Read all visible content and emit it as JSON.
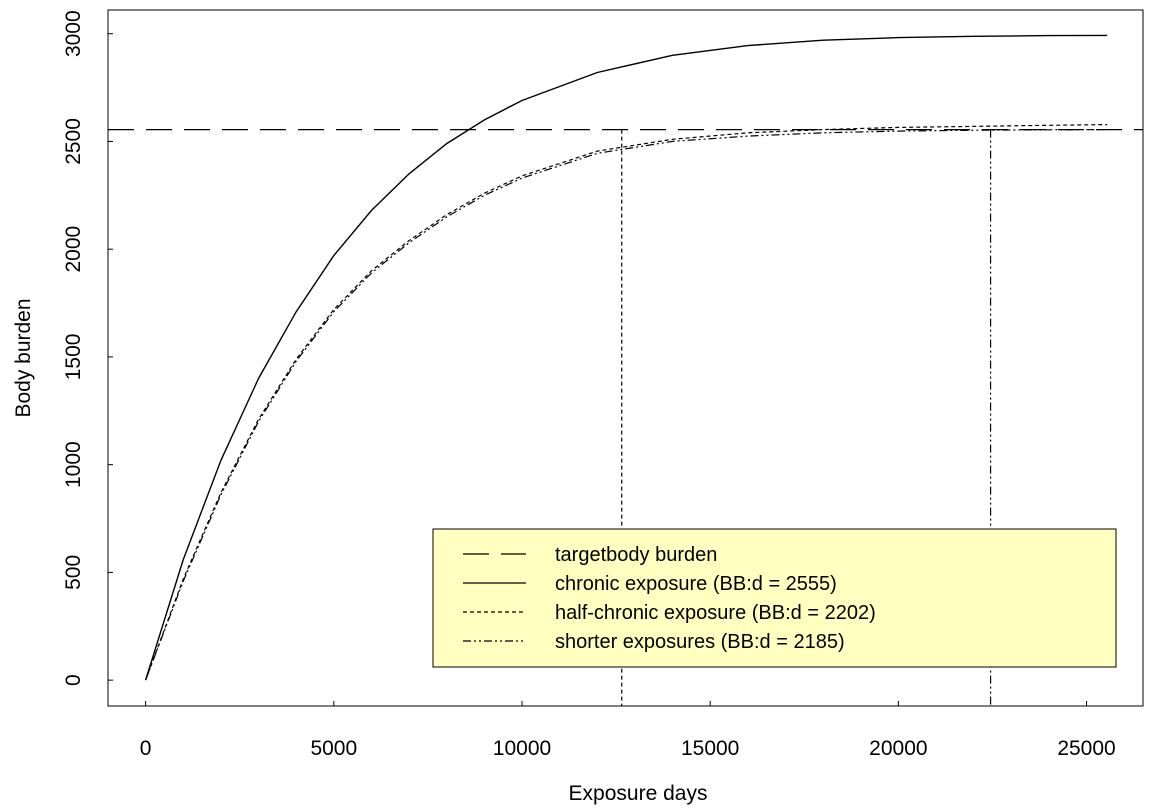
{
  "chart_data": {
    "type": "line",
    "xlabel": "Exposure days",
    "ylabel": "Body burden",
    "xlim": [
      -1000,
      26500
    ],
    "ylim": [
      -120,
      3110
    ],
    "x_ticks": [
      0,
      5000,
      10000,
      15000,
      20000,
      25000
    ],
    "y_ticks": [
      0,
      500,
      1000,
      1500,
      2000,
      2500,
      3000
    ],
    "x_tick_labels": [
      "0",
      "5000",
      "10000",
      "15000",
      "20000",
      "25000"
    ],
    "y_tick_labels": [
      "0",
      "500",
      "1000",
      "1500",
      "2000",
      "2500",
      "3000"
    ],
    "grid": false,
    "legend_position": "bottom-right",
    "legend_background": "#ffffc0",
    "target_body_burden": 2555,
    "vertical_markers": [
      {
        "x": 12650,
        "style": "dotted"
      },
      {
        "x": 22450,
        "style": "dash-dot"
      }
    ],
    "series": [
      {
        "name": "targetbody burden",
        "style": "long-dash",
        "x": [
          -1000,
          26500
        ],
        "y": [
          2555,
          2555
        ]
      },
      {
        "name": "chronic exposure (BB:d = 2555)",
        "style": "solid",
        "x": [
          0,
          1000,
          2000,
          3000,
          4000,
          5000,
          6000,
          7000,
          8000,
          9000,
          10000,
          12000,
          14000,
          16000,
          18000,
          20000,
          22000,
          24000,
          25550
        ],
        "y": [
          0,
          560,
          1020,
          1400,
          1710,
          1970,
          2180,
          2350,
          2490,
          2600,
          2690,
          2820,
          2900,
          2945,
          2970,
          2982,
          2988,
          2991,
          2992
        ]
      },
      {
        "name": "half-chronic exposure (BB:d = 2202)",
        "style": "dotted",
        "x": [
          0,
          1000,
          2000,
          3000,
          4000,
          5000,
          6000,
          7000,
          8000,
          9000,
          10000,
          12000,
          14000,
          16000,
          18000,
          20000,
          22000,
          24000,
          25550
        ],
        "y": [
          0,
          470,
          870,
          1210,
          1490,
          1720,
          1900,
          2040,
          2160,
          2260,
          2340,
          2455,
          2510,
          2540,
          2555,
          2565,
          2570,
          2575,
          2578
        ]
      },
      {
        "name": "shorter exposures (BB:d = 2185)",
        "style": "dash-dot",
        "x": [
          0,
          1000,
          2000,
          3000,
          4000,
          5000,
          6000,
          7000,
          8000,
          9000,
          10000,
          12000,
          14000,
          16000,
          18000,
          20000,
          22000,
          24000,
          25550
        ],
        "y": [
          0,
          460,
          860,
          1200,
          1480,
          1710,
          1890,
          2030,
          2150,
          2250,
          2330,
          2445,
          2500,
          2525,
          2540,
          2548,
          2552,
          2554,
          2555
        ]
      }
    ]
  }
}
